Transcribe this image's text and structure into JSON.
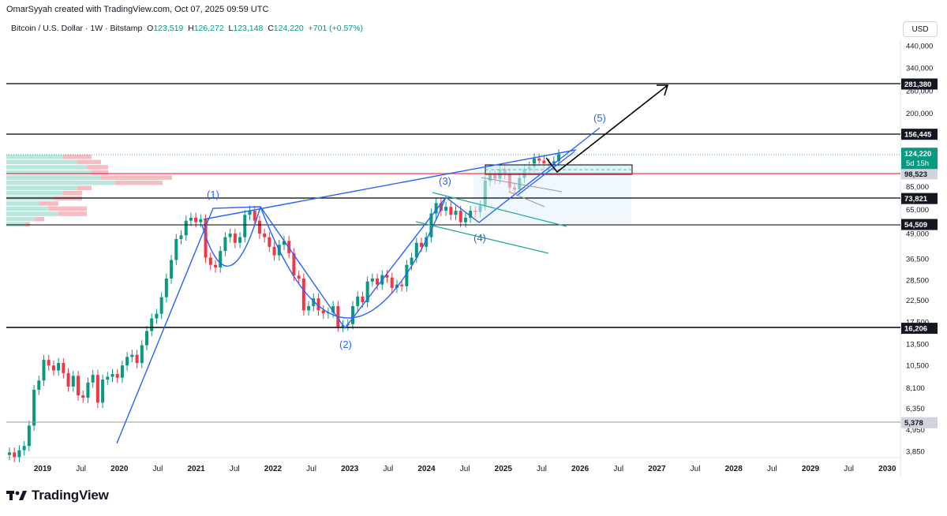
{
  "header": {
    "author_line": "OmarSyyah created with TradingView.com, Oct 07, 2025 09:59 UTC"
  },
  "symbol": {
    "name": "Bitcoin / U.S. Dollar · 1W · Bitstamp",
    "o_label": "O",
    "o_value": "123,519",
    "h_label": "H",
    "h_value": "126,272",
    "l_label": "L",
    "l_value": "123,148",
    "c_label": "C",
    "c_value": "124,220",
    "change": "+701 (+0.57%)"
  },
  "currency": "USD",
  "brand": "TradingView",
  "colors": {
    "up": "#089981",
    "down": "#f23645",
    "wave": "#2962ff",
    "channel": "#22ab94",
    "level": "#000000"
  },
  "chart_data": {
    "type": "candlestick",
    "y_scale": "log",
    "y_ticks": [
      "440,000",
      "340,000",
      "260,000",
      "200,000",
      "85,000",
      "65,000",
      "49,000",
      "36,500",
      "28,500",
      "22,500",
      "17,500",
      "13,500",
      "10,500",
      "8,100",
      "6,350",
      "4,950",
      "3,850"
    ],
    "x_ticks": [
      "2019",
      "Jul",
      "2020",
      "Jul",
      "2021",
      "Jul",
      "2022",
      "Jul",
      "2023",
      "Jul",
      "2024",
      "Jul",
      "2025",
      "Jul",
      "2026",
      "Jul",
      "2027",
      "Jul",
      "2028",
      "Jul",
      "2029",
      "Jul",
      "2030"
    ],
    "price_levels": [
      {
        "value": "281,380",
        "style": "black"
      },
      {
        "value": "156,445",
        "style": "black"
      },
      {
        "value": "98,523",
        "style": "gray"
      },
      {
        "value": "73,821",
        "style": "black"
      },
      {
        "value": "54,509",
        "style": "black"
      },
      {
        "value": "16,206",
        "style": "black"
      },
      {
        "value": "5,378",
        "style": "gray"
      }
    ],
    "current_price": {
      "value": "124,220",
      "countdown": "5d 15h"
    },
    "wave_labels": [
      "(1)",
      "(2)",
      "(3)",
      "(4)",
      "(5)"
    ],
    "closes": [
      3800,
      3600,
      3900,
      4100,
      5200,
      7900,
      8800,
      11200,
      10500,
      9900,
      10800,
      9600,
      8200,
      9300,
      7400,
      7200,
      8600,
      9400,
      6800,
      8900,
      9200,
      9500,
      9100,
      10500,
      11600,
      11900,
      10800,
      13300,
      15700,
      18200,
      19200,
      23300,
      29000,
      36000,
      46000,
      48000,
      57000,
      59000,
      56000,
      58000,
      37000,
      34000,
      33000,
      40000,
      47000,
      49000,
      44000,
      47000,
      61000,
      64000,
      57000,
      49000,
      47000,
      42000,
      38000,
      43000,
      45000,
      39000,
      30000,
      29000,
      20000,
      21000,
      23000,
      20000,
      19300,
      19500,
      21000,
      16500,
      16800,
      17000,
      21000,
      23500,
      22000,
      28000,
      29000,
      27000,
      30200,
      29300,
      26000,
      27000,
      26500,
      34000,
      37000,
      44000,
      42000,
      47000,
      62000,
      70000,
      64000,
      67000,
      61000,
      64000,
      56000,
      59000,
      64000,
      63000,
      68000,
      91000,
      97000,
      93000,
      104000,
      98000,
      84000,
      82000,
      94000,
      104000,
      107000,
      118000,
      115000,
      111000,
      109000,
      114000,
      124000
    ],
    "volume_profile": [
      {
        "up": 120,
        "down": 60
      },
      {
        "up": 150,
        "down": 50
      },
      {
        "up": 170,
        "down": 45
      },
      {
        "up": 180,
        "down": 35
      },
      {
        "up": 200,
        "down": 150
      },
      {
        "up": 230,
        "down": 100
      },
      {
        "up": 150,
        "down": 30
      },
      {
        "up": 120,
        "down": 40
      },
      {
        "up": 100,
        "down": 60
      },
      {
        "up": 70,
        "down": 40
      },
      {
        "up": 90,
        "down": 80
      },
      {
        "up": 110,
        "down": 60
      },
      {
        "up": 60,
        "down": 20
      },
      {
        "up": 40,
        "down": 10
      }
    ]
  }
}
